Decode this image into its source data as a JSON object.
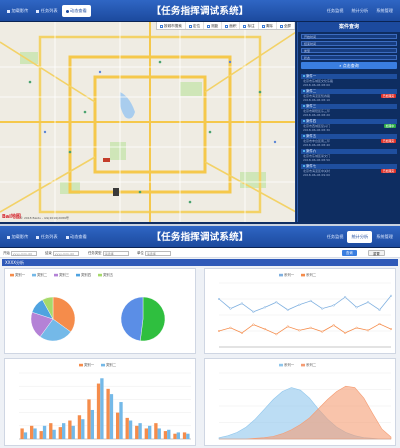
{
  "screen1": {
    "title": "【任务指挥调试系统】",
    "nav_left": [
      {
        "label": "加载影传",
        "active": false
      },
      {
        "label": "任务列表",
        "active": false
      },
      {
        "label": "动态查看",
        "active": true
      }
    ],
    "nav_right": [
      {
        "label": "任务监视"
      },
      {
        "label": "统计分析"
      },
      {
        "label": "系统管理"
      }
    ],
    "map_toolbar": [
      "按城市搜索",
      "定位",
      "测距",
      "面积",
      "标注",
      "清除",
      "全屏"
    ],
    "map_logo": "Bai地图",
    "map_copyright": "© 2018 Baidu - GS(2016)2089号",
    "sidebar": {
      "title": "案件查询",
      "fields": [
        "开始时间",
        "结束时间",
        "类型",
        "状态"
      ],
      "search_label": "点击查询",
      "records": [
        {
          "name": "案件一",
          "lines": [
            "北京市东城区文化东路",
            "2018-06-06 08:00"
          ],
          "tag": "",
          "tag_color": ""
        },
        {
          "name": "案件二",
          "lines": [
            "北京市海淀区知春路",
            "2018-06-06 08:10"
          ],
          "tag": "已处理完",
          "tag_color": "#e0342c"
        },
        {
          "name": "案件三",
          "lines": [
            "北京市朝阳区东三环",
            "2018-06-06 08:20"
          ],
          "tag": "",
          "tag_color": ""
        },
        {
          "name": "案件四",
          "lines": [
            "北京市西城区复兴门",
            "2018-06-06 08:30"
          ],
          "tag": "处理中",
          "tag_color": "#2fae4a"
        },
        {
          "name": "案件五",
          "lines": [
            "北京市丰台区南三环",
            "2018-06-06 08:40"
          ],
          "tag": "已处理完",
          "tag_color": "#e0342c"
        },
        {
          "name": "案件六",
          "lines": [
            "北京市东城区崇文门",
            "2018-06-06 08:50"
          ],
          "tag": "",
          "tag_color": ""
        },
        {
          "name": "案件七",
          "lines": [
            "北京市海淀区中关村",
            "2018-06-06 09:00"
          ],
          "tag": "已处理完",
          "tag_color": "#e0342c"
        }
      ]
    }
  },
  "screen2": {
    "title": "【任务指挥调试系统】",
    "nav_left": [
      {
        "label": "加载影传",
        "active": false
      },
      {
        "label": "任务列表",
        "active": false
      },
      {
        "label": "动态查看",
        "active": false
      }
    ],
    "nav_right": [
      {
        "label": "任务监视",
        "active": false
      },
      {
        "label": "统计分析",
        "active": true
      },
      {
        "label": "系统管理",
        "active": false
      }
    ],
    "filters": {
      "start_label": "开始",
      "start_value": "yyyy-mm-dd",
      "end_label": "结束",
      "end_value": "yyyy-mm-dd",
      "type_label": "任务类型",
      "type_value": "请选择",
      "unit_label": "单位",
      "unit_value": "请选择",
      "query_label": "查询",
      "reset_label": "重置"
    },
    "section_title": "XXXX分析"
  },
  "chart_data": [
    {
      "type": "pie",
      "legend": [
        "类别一",
        "类别二",
        "类别三",
        "类别四",
        "类别五"
      ],
      "values": [
        35,
        25,
        20,
        12,
        8
      ],
      "colors": [
        "#f58c4b",
        "#74b9e8",
        "#b482d6",
        "#4fa3e0",
        "#a6d96a"
      ]
    },
    {
      "type": "pie",
      "values": [
        52,
        48
      ],
      "colors": [
        "#2fbf3f",
        "#5b8ee6"
      ]
    },
    {
      "type": "line",
      "legend": [
        "系列一",
        "系列二"
      ],
      "categories": [
        "1",
        "2",
        "3",
        "4",
        "5",
        "6",
        "7",
        "8",
        "9",
        "10",
        "11",
        "12",
        "13",
        "14",
        "15",
        "16"
      ],
      "series": [
        {
          "name": "系列一",
          "values": [
            75,
            60,
            68,
            55,
            62,
            70,
            58,
            66,
            72,
            60,
            65,
            78,
            62,
            70,
            58,
            80
          ],
          "color": "#7fb0e0"
        },
        {
          "name": "系列二",
          "values": [
            25,
            30,
            22,
            35,
            28,
            20,
            32,
            26,
            30,
            24,
            34,
            22,
            30,
            26,
            36,
            28
          ],
          "color": "#f58c4b"
        }
      ],
      "ylim": [
        0,
        100
      ]
    },
    {
      "type": "bar",
      "legend": [
        "类别一",
        "类别二"
      ],
      "categories": [
        "1",
        "2",
        "3",
        "4",
        "5",
        "6",
        "7",
        "8",
        "9",
        "10",
        "11",
        "12",
        "13",
        "14",
        "15",
        "16",
        "17",
        "18"
      ],
      "series": [
        {
          "name": "类别一",
          "values": [
            8,
            10,
            6,
            12,
            9,
            14,
            18,
            30,
            42,
            38,
            20,
            16,
            10,
            8,
            12,
            6,
            4,
            5
          ],
          "color": "#f58c4b"
        },
        {
          "name": "类别二",
          "values": [
            5,
            8,
            10,
            7,
            12,
            10,
            15,
            22,
            46,
            34,
            28,
            14,
            12,
            10,
            8,
            7,
            5,
            4
          ],
          "color": "#74b9e8"
        }
      ],
      "ylim": [
        0,
        50
      ]
    },
    {
      "type": "area",
      "legend": [
        "系列一",
        "系列二"
      ],
      "categories": [
        "1",
        "2",
        "3",
        "4",
        "5",
        "6",
        "7",
        "8",
        "9",
        "10",
        "11",
        "12",
        "13",
        "14",
        "15",
        "16",
        "17",
        "18",
        "19",
        "20"
      ],
      "series": [
        {
          "name": "系列一",
          "values": [
            2,
            5,
            10,
            18,
            30,
            45,
            60,
            72,
            78,
            74,
            62,
            45,
            30,
            18,
            10,
            5,
            2,
            1,
            0,
            0
          ],
          "color": "#8fc6ec"
        },
        {
          "name": "系列二",
          "values": [
            0,
            0,
            0,
            0,
            1,
            2,
            4,
            8,
            14,
            22,
            32,
            46,
            60,
            72,
            80,
            78,
            62,
            38,
            15,
            3
          ],
          "color": "#f59c73"
        }
      ],
      "ylim": [
        0,
        100
      ]
    }
  ]
}
